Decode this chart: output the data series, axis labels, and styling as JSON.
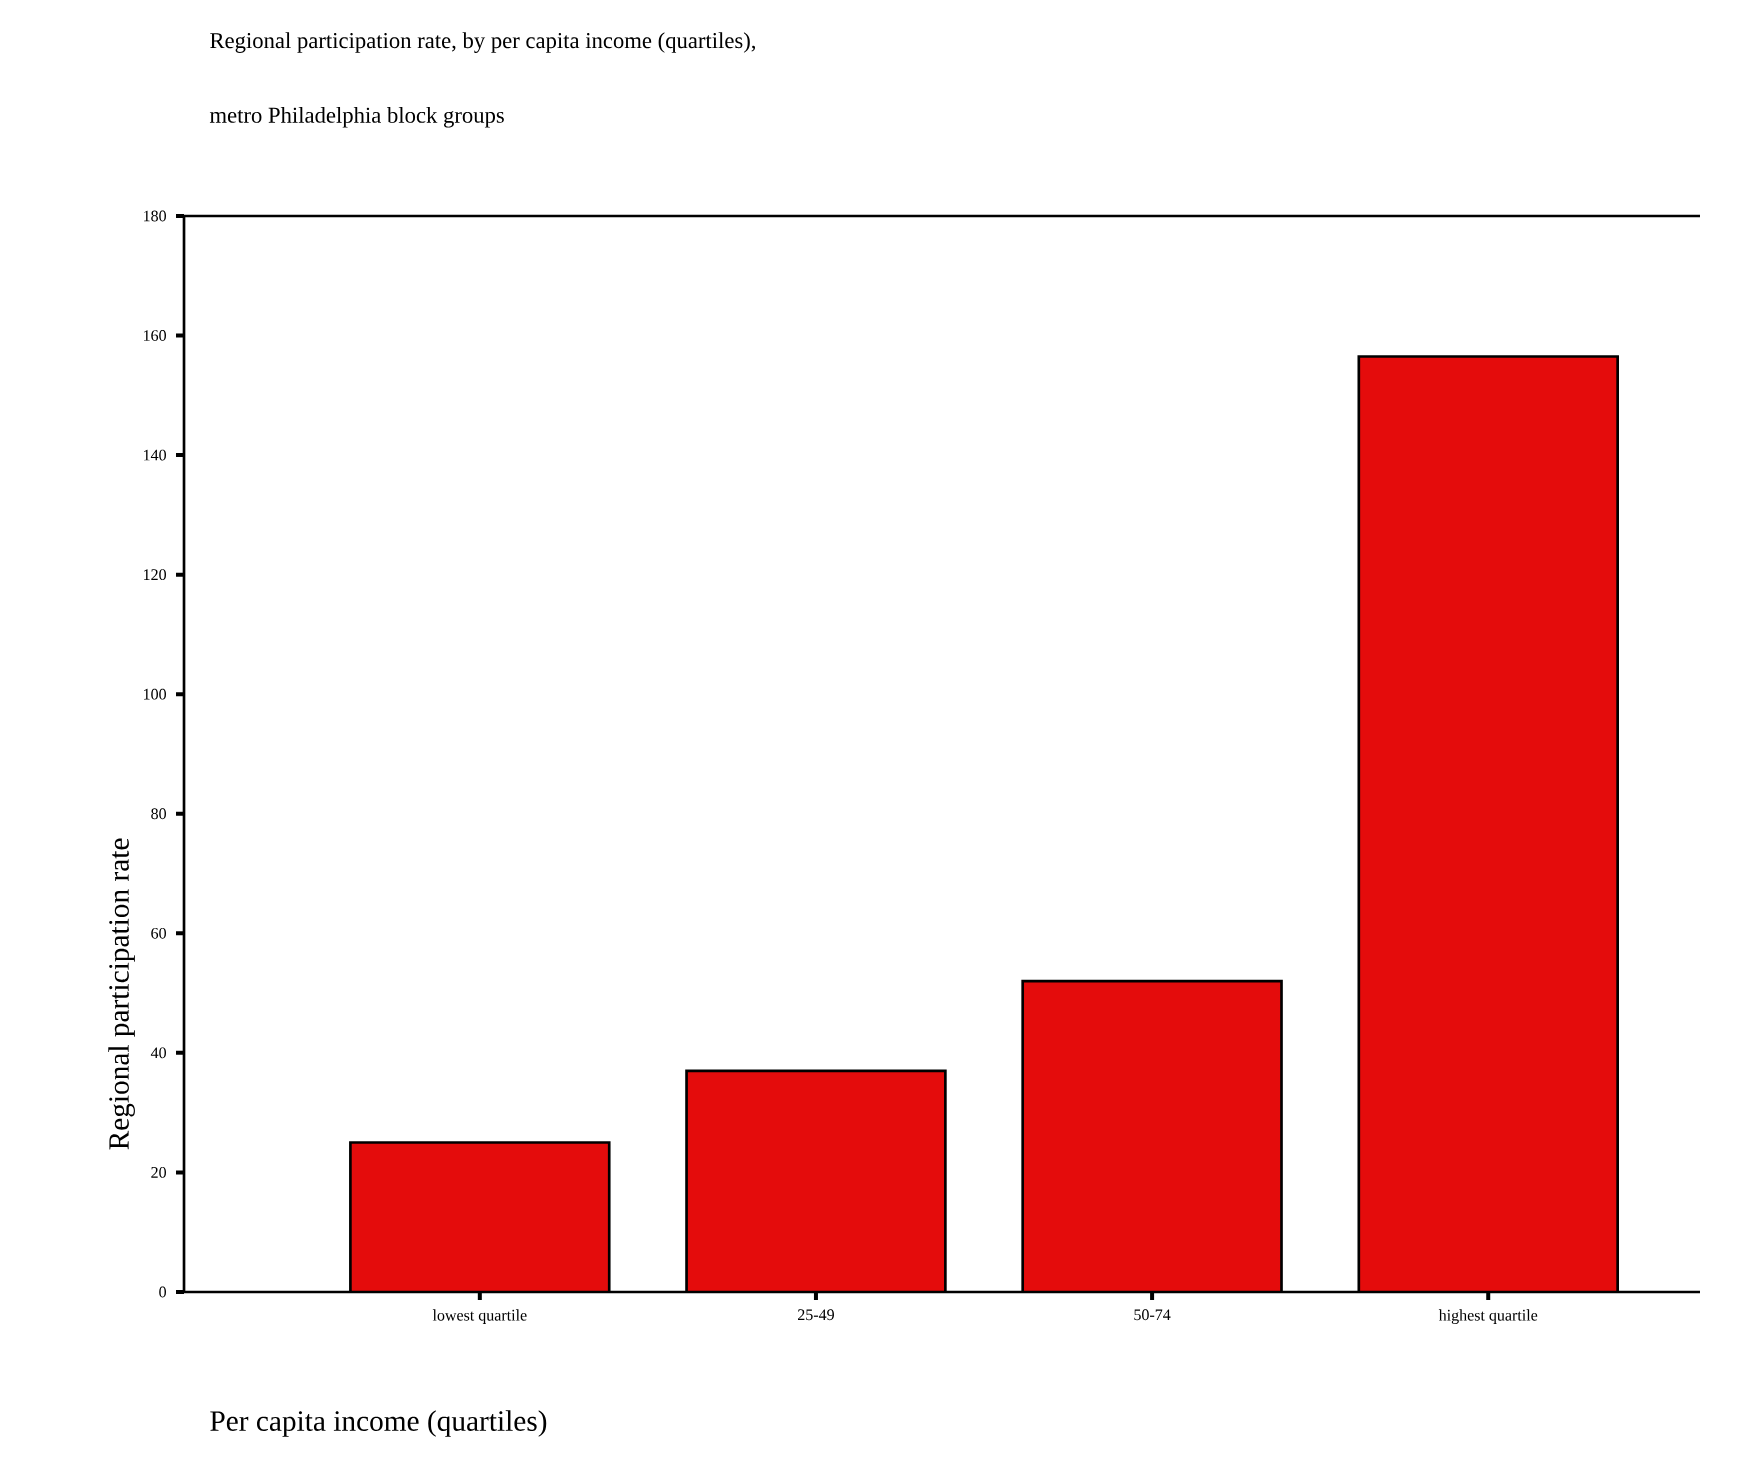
{
  "chart_data": {
    "type": "bar",
    "title": "Regional participation rate, by per capita income (quartiles),",
    "subtitle": "metro Philadelphia block groups",
    "xlabel": "Per capita income (quartiles)",
    "ylabel": "Regional participation rate",
    "categories": [
      "lowest quartile",
      "25-49",
      "50-74",
      "highest quartile"
    ],
    "values": [
      25,
      37,
      52,
      156.5
    ],
    "color": "#e40c0c",
    "ylim": [
      0,
      180
    ],
    "yticks": [
      0,
      20,
      40,
      60,
      80,
      100,
      120,
      140,
      160,
      180
    ],
    "grid": false
  }
}
